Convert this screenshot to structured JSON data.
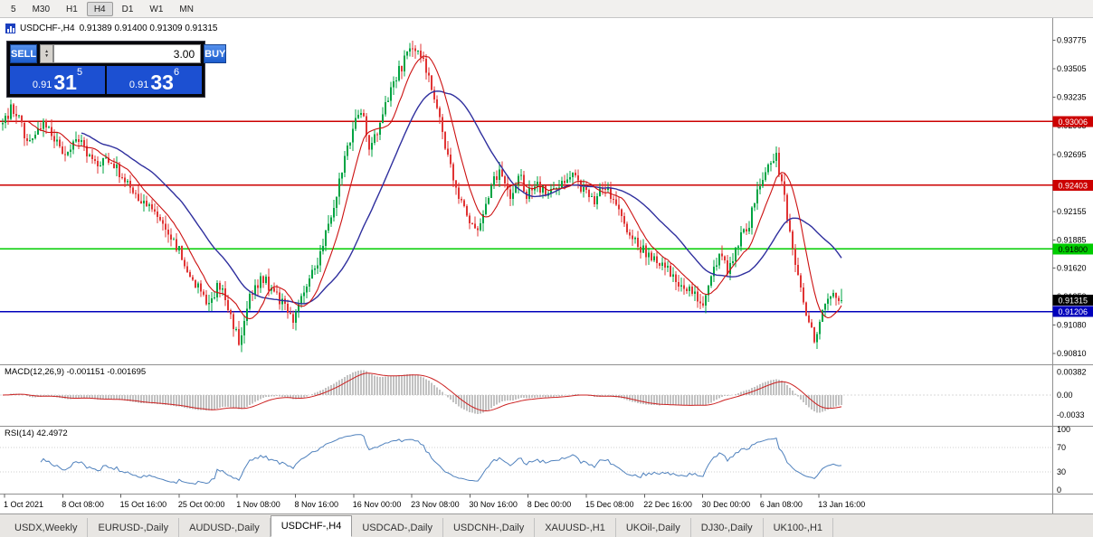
{
  "toolbar": {
    "timeframes": [
      {
        "label": "5",
        "active": false
      },
      {
        "label": "M30",
        "active": false
      },
      {
        "label": "H1",
        "active": false
      },
      {
        "label": "H4",
        "active": true
      },
      {
        "label": "D1",
        "active": false
      },
      {
        "label": "W1",
        "active": false
      },
      {
        "label": "MN",
        "active": false
      }
    ]
  },
  "header": {
    "symbol": "USDCHF-,H4",
    "ohlc": "0.91389 0.91400 0.91309 0.91315"
  },
  "trade_panel": {
    "sell_label": "SELL",
    "buy_label": "BUY",
    "volume": "3.00",
    "sell_price": {
      "prefix": "0.91",
      "big": "31",
      "sup": "5"
    },
    "buy_price": {
      "prefix": "0.91",
      "big": "33",
      "sup": "6"
    }
  },
  "chart_data": {
    "type": "candlestick",
    "symbol": "USDCHF-,H4",
    "ohlc_header": {
      "open": "0.91389",
      "high": "0.91400",
      "low": "0.91309",
      "close": "0.91315"
    },
    "price_min": 0.9075,
    "price_max": 0.939,
    "price_axis_labels": [
      "0.93775",
      "0.93505",
      "0.93235",
      "0.92965",
      "0.92695",
      "0.92425",
      "0.92155",
      "0.91885",
      "0.91620",
      "0.91350",
      "0.91080",
      "0.90810"
    ],
    "horizontal_levels": [
      {
        "price": 0.93006,
        "label": "0.93006",
        "color": "#cc0000",
        "width": 1.4,
        "text_color": "#ffffff"
      },
      {
        "price": 0.92403,
        "label": "0.92403",
        "color": "#cc0000",
        "width": 1.4,
        "text_color": "#ffffff"
      },
      {
        "price": 0.918,
        "label": "0.91800",
        "color": "#00cc00",
        "width": 1.6,
        "text_color": "#000000"
      },
      {
        "price": 0.91206,
        "label": "0.91206",
        "color": "#0000bb",
        "width": 1.8,
        "text_color": "#ffffff"
      }
    ],
    "current_price": {
      "value": 0.91315,
      "label": "0.91315",
      "badge_bg": "#000000"
    },
    "x_labels": [
      "1 Oct 2021",
      "8 Oct 08:00",
      "15 Oct 16:00",
      "25 Oct 00:00",
      "1 Nov 08:00",
      "8 Nov 16:00",
      "16 Nov 00:00",
      "23 Nov 08:00",
      "30 Nov 16:00",
      "8 Dec 00:00",
      "15 Dec 08:00",
      "22 Dec 16:00",
      "30 Dec 00:00",
      "6 Jan 08:00",
      "13 Jan 16:00"
    ],
    "candle_count": 310,
    "waypoints": [
      [
        0.0,
        0.9298
      ],
      [
        0.012,
        0.9315
      ],
      [
        0.03,
        0.9282
      ],
      [
        0.048,
        0.93
      ],
      [
        0.073,
        0.9272
      ],
      [
        0.09,
        0.9283
      ],
      [
        0.11,
        0.9258
      ],
      [
        0.128,
        0.9267
      ],
      [
        0.141,
        0.925
      ],
      [
        0.16,
        0.9232
      ],
      [
        0.175,
        0.922
      ],
      [
        0.19,
        0.9205
      ],
      [
        0.21,
        0.9178
      ],
      [
        0.228,
        0.915
      ],
      [
        0.245,
        0.9125
      ],
      [
        0.258,
        0.9148
      ],
      [
        0.27,
        0.9118
      ],
      [
        0.282,
        0.909
      ],
      [
        0.295,
        0.914
      ],
      [
        0.31,
        0.9152
      ],
      [
        0.33,
        0.9132
      ],
      [
        0.347,
        0.911
      ],
      [
        0.36,
        0.914
      ],
      [
        0.375,
        0.9165
      ],
      [
        0.39,
        0.9205
      ],
      [
        0.405,
        0.9255
      ],
      [
        0.417,
        0.9295
      ],
      [
        0.428,
        0.931
      ],
      [
        0.438,
        0.9272
      ],
      [
        0.45,
        0.9302
      ],
      [
        0.462,
        0.933
      ],
      [
        0.475,
        0.9352
      ],
      [
        0.486,
        0.9368
      ],
      [
        0.495,
        0.9372
      ],
      [
        0.508,
        0.9345
      ],
      [
        0.52,
        0.9308
      ],
      [
        0.532,
        0.9262
      ],
      [
        0.545,
        0.9228
      ],
      [
        0.555,
        0.9205
      ],
      [
        0.565,
        0.9192
      ],
      [
        0.578,
        0.923
      ],
      [
        0.592,
        0.9255
      ],
      [
        0.605,
        0.9232
      ],
      [
        0.618,
        0.9248
      ],
      [
        0.625,
        0.923
      ],
      [
        0.638,
        0.9242
      ],
      [
        0.65,
        0.9228
      ],
      [
        0.662,
        0.924
      ],
      [
        0.675,
        0.9252
      ],
      [
        0.686,
        0.9242
      ],
      [
        0.694,
        0.9235
      ],
      [
        0.705,
        0.9222
      ],
      [
        0.715,
        0.9242
      ],
      [
        0.728,
        0.923
      ],
      [
        0.74,
        0.9205
      ],
      [
        0.752,
        0.9188
      ],
      [
        0.763,
        0.918
      ],
      [
        0.775,
        0.9172
      ],
      [
        0.79,
        0.9162
      ],
      [
        0.805,
        0.9148
      ],
      [
        0.82,
        0.914
      ],
      [
        0.833,
        0.9128
      ],
      [
        0.845,
        0.9152
      ],
      [
        0.855,
        0.9178
      ],
      [
        0.865,
        0.9158
      ],
      [
        0.875,
        0.9185
      ],
      [
        0.888,
        0.9198
      ],
      [
        0.901,
        0.924
      ],
      [
        0.913,
        0.9262
      ],
      [
        0.922,
        0.9268
      ],
      [
        0.932,
        0.9228
      ],
      [
        0.944,
        0.9172
      ],
      [
        0.956,
        0.9122
      ],
      [
        0.968,
        0.9094
      ],
      [
        0.98,
        0.9124
      ],
      [
        0.99,
        0.9138
      ],
      [
        1.0,
        0.9132
      ]
    ],
    "indicators": {
      "macd": {
        "label": "MACD(12,26,9)",
        "values_text": "-0.001151 -0.001695",
        "axis": [
          {
            "v": 0.00382,
            "label": "0.00382"
          },
          {
            "v": 0,
            "label": "0.00"
          },
          {
            "v": -0.0033,
            "label": "-0.0033"
          }
        ]
      },
      "rsi": {
        "label": "RSI(14)",
        "value_text": "42.4972",
        "axis": [
          {
            "v": 100,
            "label": "100"
          },
          {
            "v": 70,
            "label": "70"
          },
          {
            "v": 30,
            "label": "30"
          },
          {
            "v": 0,
            "label": "0"
          }
        ]
      }
    },
    "colors": {
      "up": "#00a443",
      "down": "#e03434",
      "ma_fast": "#cc1111",
      "ma_slow": "#2f2f9e",
      "macd_hist": "#c2c2c2",
      "macd_signal": "#cc2222",
      "rsi": "#4f81bd"
    }
  },
  "tabs": [
    {
      "label": "USDX,Weekly",
      "active": false
    },
    {
      "label": "EURUSD-,Daily",
      "active": false
    },
    {
      "label": "AUDUSD-,Daily",
      "active": false
    },
    {
      "label": "USDCHF-,H4",
      "active": true
    },
    {
      "label": "USDCAD-,Daily",
      "active": false
    },
    {
      "label": "USDCNH-,Daily",
      "active": false
    },
    {
      "label": "XAUUSD-,H1",
      "active": false
    },
    {
      "label": "UKOil-,Daily",
      "active": false
    },
    {
      "label": "DJ30-,Daily",
      "active": false
    },
    {
      "label": "UK100-,H1",
      "active": false
    }
  ]
}
